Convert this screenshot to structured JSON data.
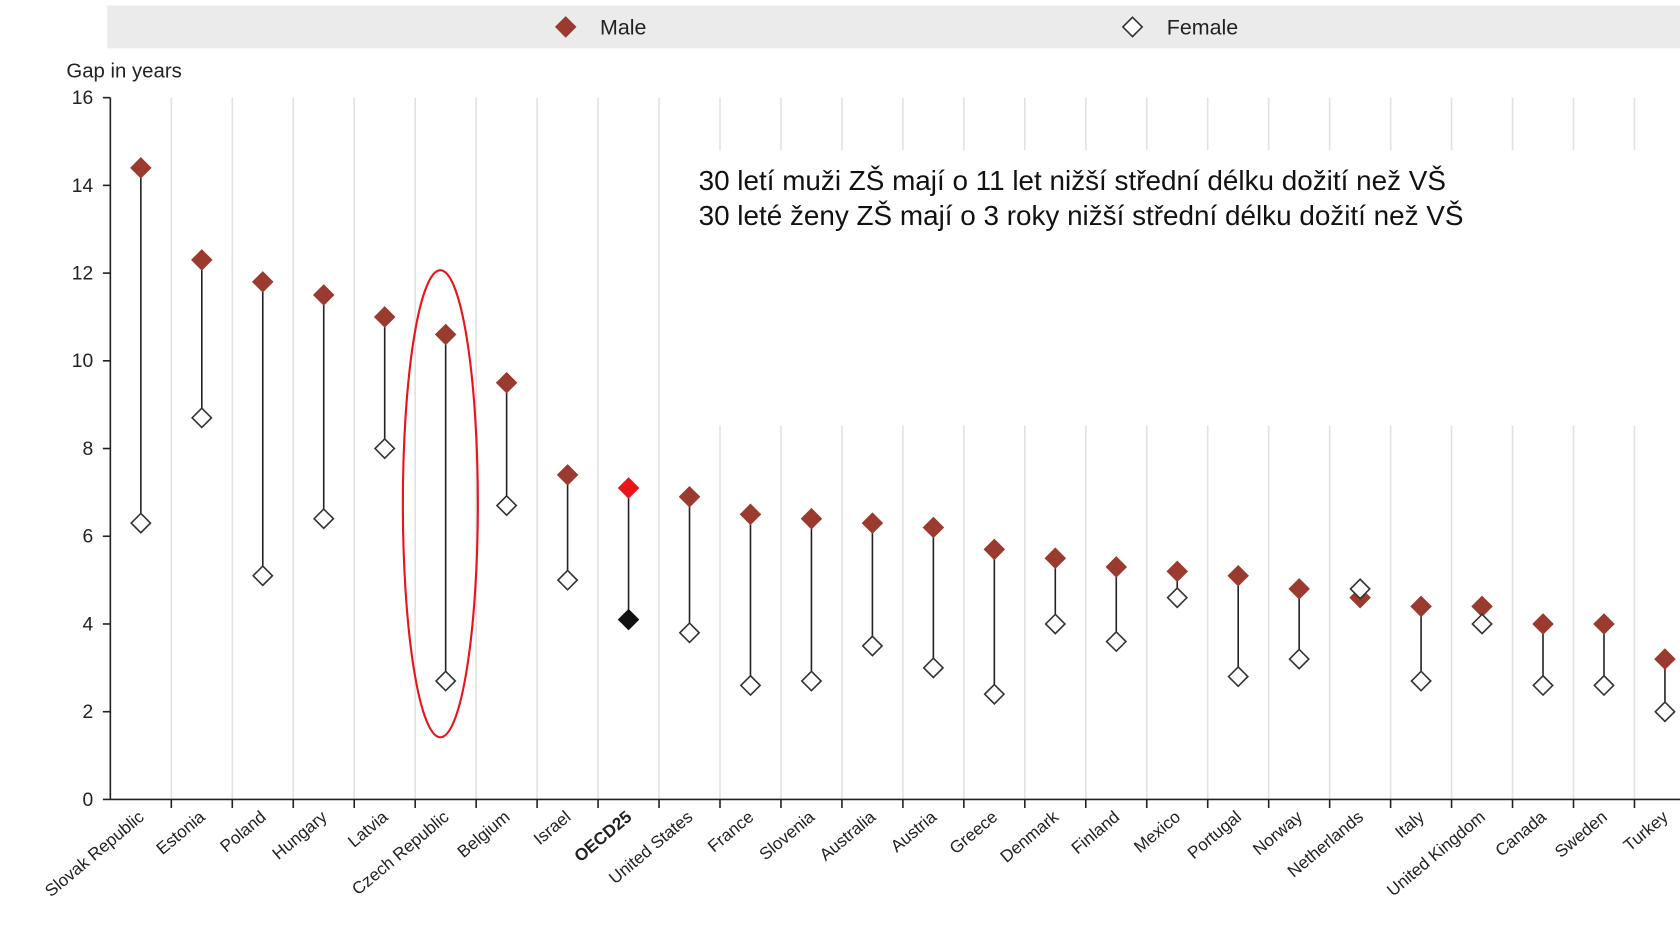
{
  "chart_data": {
    "type": "dot",
    "y_axis_label": "Gap in years",
    "categories": [
      "Slovak Republic",
      "Estonia",
      "Poland",
      "Hungary",
      "Latvia",
      "Czech Republic",
      "Belgium",
      "Israel",
      "OECD25",
      "United States",
      "France",
      "Slovenia",
      "Australia",
      "Austria",
      "Greece",
      "Denmark",
      "Finland",
      "Mexico",
      "Portugal",
      "Norway",
      "Netherlands",
      "Italy",
      "United Kingdom",
      "Canada",
      "Sweden",
      "Turkey"
    ],
    "series": [
      {
        "name": "Male",
        "color": "#9b3a2e",
        "highlight_color": "#e8161c",
        "values": [
          14.4,
          12.3,
          11.8,
          11.5,
          11.0,
          10.6,
          9.5,
          7.4,
          7.1,
          6.9,
          6.5,
          6.4,
          6.3,
          6.2,
          5.7,
          5.5,
          5.3,
          5.2,
          5.1,
          4.8,
          4.6,
          4.4,
          4.4,
          4.0,
          4.0,
          3.2
        ]
      },
      {
        "name": "Female",
        "color": "#ffffff",
        "highlight_color": "#111111",
        "values": [
          6.3,
          8.7,
          5.1,
          6.4,
          8.0,
          2.7,
          6.7,
          5.0,
          4.1,
          3.8,
          2.6,
          2.7,
          3.5,
          3.0,
          2.4,
          4.0,
          3.6,
          4.6,
          2.8,
          3.2,
          4.8,
          2.7,
          4.0,
          2.6,
          2.6,
          2.0
        ]
      }
    ],
    "highlight": "OECD25",
    "ylim": [
      0,
      16
    ],
    "yticks": [
      0,
      2,
      4,
      6,
      8,
      10,
      12,
      14,
      16
    ],
    "annotations": [
      "30 letí muži ZŠ mají o 11 let nižší střední délku dožití než VŠ",
      "30 leté ženy ZŠ mají o 3 roky nižší střední délku dožití než VŠ"
    ]
  }
}
